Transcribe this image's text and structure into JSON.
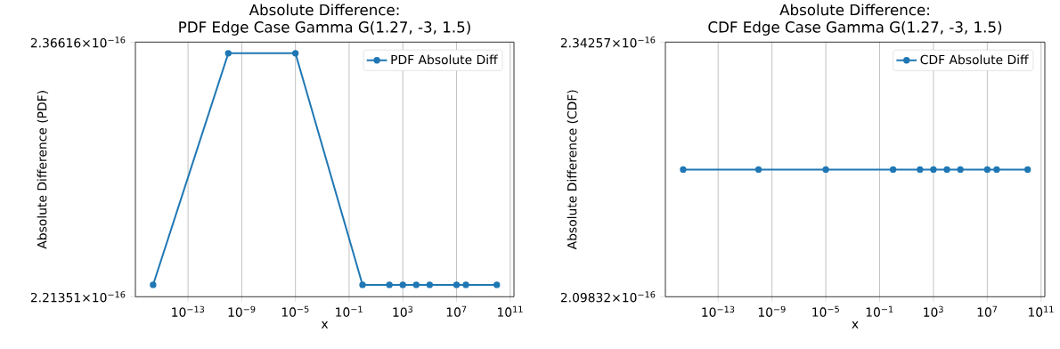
{
  "chart_data": [
    {
      "type": "line",
      "title": "Absolute Difference:",
      "subtitle": "PDF Edge Case Gamma G(1.27, -3, 1.5)",
      "xlabel": "x",
      "ylabel": "Absolute Difference (PDF)",
      "log": "xy",
      "grid": "x",
      "legend": "top right",
      "marker": "circle",
      "x": [
        2.5e-16,
        1e-10,
        1e-05,
        1,
        100,
        1000,
        10000,
        100000,
        10000000.0,
        50000000.0,
        10000000000.0
      ],
      "series": [
        {
          "name": "PDF Absolute Diff",
          "color": "#1f77b4",
          "values": [
            2.2204e-16,
            2.3592e-16,
            2.3592e-16,
            2.2204e-16,
            2.2204e-16,
            2.2204e-16,
            2.2204e-16,
            2.2204e-16,
            2.2204e-16,
            2.2204e-16,
            2.2204e-16
          ]
        }
      ],
      "xlim": [
        1.2e-17,
        190000000000.0
      ],
      "xticks": [
        {
          "value": 1e-13,
          "label": "10$^{−13}$"
        },
        {
          "value": 1e-09,
          "label": "10$^{−9}$"
        },
        {
          "value": 1e-05,
          "label": "10$^{−5}$"
        },
        {
          "value": 0.1,
          "label": "10$^{−1}$"
        },
        {
          "value": 1000,
          "label": "10$^{3}$"
        },
        {
          "value": 10000000.0,
          "label": "10$^{7}$"
        },
        {
          "value": 100000000000.0,
          "label": "10$^{11}$"
        }
      ],
      "ylim": [
        2.21351e-16,
        2.36616e-16
      ],
      "yticks": [
        {
          "value": 2.21351e-16,
          "label": "2.21351×10$^{−16}$"
        },
        {
          "value": 2.36616e-16,
          "label": "2.36616×10$^{−16}$"
        }
      ]
    },
    {
      "type": "line",
      "title": "Absolute Difference:",
      "subtitle": "CDF Edge Case Gamma G(1.27, -3, 1.5)",
      "xlabel": "x",
      "ylabel": "Absolute Difference (CDF)",
      "log": "xy",
      "grid": "x",
      "legend": "top right",
      "marker": "circle",
      "x": [
        2.5e-16,
        1e-10,
        1e-05,
        1,
        100,
        1000,
        10000,
        100000,
        10000000.0,
        50000000.0,
        10000000000.0
      ],
      "series": [
        {
          "name": "CDF Absolute Diff",
          "color": "#1f77b4",
          "values": [
            2.217e-16,
            2.217e-16,
            2.217e-16,
            2.217e-16,
            2.217e-16,
            2.217e-16,
            2.217e-16,
            2.217e-16,
            2.217e-16,
            2.217e-16,
            2.217e-16
          ]
        }
      ],
      "xlim": [
        1.2e-17,
        190000000000.0
      ],
      "xticks": [
        {
          "value": 1e-13,
          "label": "10$^{−13}$"
        },
        {
          "value": 1e-09,
          "label": "10$^{−9}$"
        },
        {
          "value": 1e-05,
          "label": "10$^{−5}$"
        },
        {
          "value": 0.1,
          "label": "10$^{−1}$"
        },
        {
          "value": 1000,
          "label": "10$^{3}$"
        },
        {
          "value": 10000000.0,
          "label": "10$^{7}$"
        },
        {
          "value": 100000000000.0,
          "label": "10$^{11}$"
        }
      ],
      "ylim": [
        2.09832e-16,
        2.34257e-16
      ],
      "yticks": [
        {
          "value": 2.09832e-16,
          "label": "2.09832×10$^{−16}$"
        },
        {
          "value": 2.34257e-16,
          "label": "2.34257×10$^{−16}$"
        }
      ]
    }
  ]
}
